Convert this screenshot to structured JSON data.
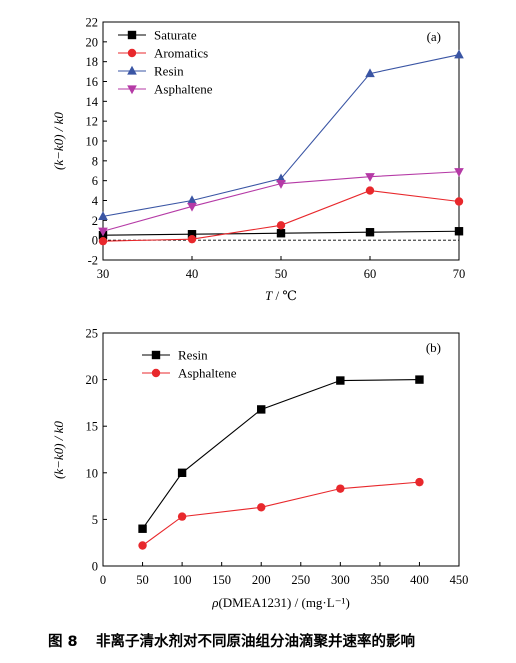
{
  "chart_data": [
    {
      "type": "line",
      "panel_label": "(a)",
      "xlabel_italic": "T",
      "xlabel_rest": " / ℃",
      "ylabel": "(k−k0) / k0",
      "xlim": [
        30,
        70
      ],
      "ylim": [
        -2,
        22
      ],
      "xticks": [
        30,
        40,
        50,
        60,
        70
      ],
      "yticks": [
        -2,
        0,
        2,
        4,
        6,
        8,
        10,
        12,
        14,
        16,
        18,
        20,
        22
      ],
      "x": [
        30,
        40,
        50,
        60,
        70
      ],
      "reference_line": 0,
      "legend_position": "top-left",
      "series": [
        {
          "name": "Saturate",
          "values": [
            0.5,
            0.6,
            0.7,
            0.8,
            0.9
          ],
          "color": "#000000",
          "marker": "square"
        },
        {
          "name": "Aromatics",
          "values": [
            -0.1,
            0.1,
            1.5,
            5.0,
            3.9
          ],
          "color": "#e8282c",
          "marker": "circle"
        },
        {
          "name": "Resin",
          "values": [
            2.4,
            4.0,
            6.2,
            16.8,
            18.7
          ],
          "color": "#3a55a4",
          "marker": "triangle-up"
        },
        {
          "name": "Asphaltene",
          "values": [
            0.9,
            3.4,
            5.7,
            6.4,
            6.9
          ],
          "color": "#b53aa6",
          "marker": "triangle-down"
        }
      ]
    },
    {
      "type": "line",
      "panel_label": "(b)",
      "xlabel_italic": "ρ",
      "xlabel_rest": "(DMEA1231) / (mg·L⁻¹)",
      "ylabel": "(k−k0) / k0",
      "xlim": [
        0,
        450
      ],
      "ylim": [
        0,
        25
      ],
      "xticks": [
        0,
        50,
        100,
        150,
        200,
        250,
        300,
        350,
        400,
        450
      ],
      "yticks": [
        0,
        5,
        10,
        15,
        20,
        25
      ],
      "x": [
        50,
        100,
        200,
        300,
        400
      ],
      "legend_position": "top-left",
      "series": [
        {
          "name": "Resin",
          "values": [
            4.0,
            10.0,
            16.8,
            19.9,
            20.0
          ],
          "color": "#000000",
          "marker": "square"
        },
        {
          "name": "Asphaltene",
          "values": [
            2.2,
            5.3,
            6.3,
            8.3,
            9.0
          ],
          "color": "#e8282c",
          "marker": "circle"
        }
      ]
    }
  ],
  "caption": {
    "label": "图 8",
    "text": "非离子清水剂对不同原油组分油滴聚并速率的影响"
  }
}
